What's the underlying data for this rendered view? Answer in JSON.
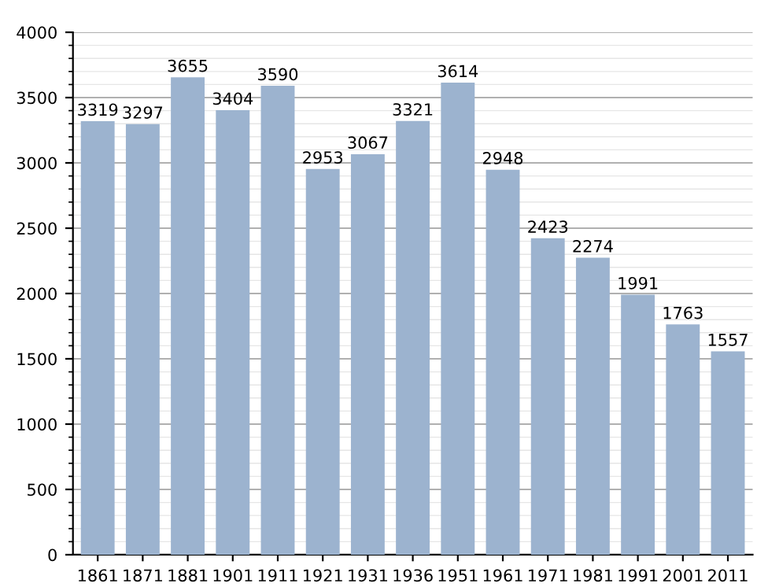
{
  "chart_data": {
    "type": "bar",
    "categories": [
      "1861",
      "1871",
      "1881",
      "1901",
      "1911",
      "1921",
      "1931",
      "1936",
      "1951",
      "1961",
      "1971",
      "1981",
      "1991",
      "2001",
      "2011"
    ],
    "values": [
      3319,
      3297,
      3655,
      3404,
      3590,
      2953,
      3067,
      3321,
      3614,
      2948,
      2423,
      2274,
      1991,
      1763,
      1557
    ],
    "color": "#9cb3cf",
    "ylim": [
      0,
      4000
    ],
    "yticks": [
      0,
      500,
      1000,
      1500,
      2000,
      2500,
      3000,
      3500,
      4000
    ],
    "grid": "y",
    "data_labels": true
  }
}
